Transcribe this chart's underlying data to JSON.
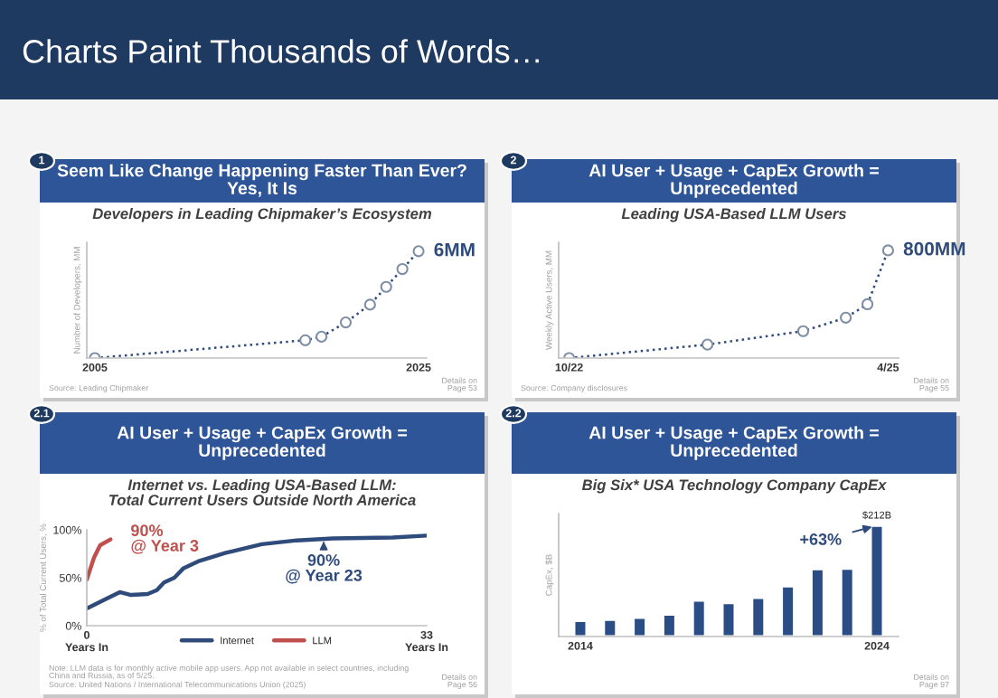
{
  "chart_data": [
    {
      "type": "other",
      "title": "Charts Paint Thousands of Words…"
    },
    {
      "type": "line",
      "title": "Seem Like Change Happening Faster Than Ever?\nYes, It Is",
      "subtitle": "Developers in Leading Chipmaker’s Ecosystem",
      "ylabel": "Number of Developers, MM",
      "x": [
        2005,
        2018,
        2019,
        2020.5,
        2022,
        2023,
        2024,
        2025
      ],
      "series": [
        {
          "color": "#2f4b7c",
          "values": [
            0,
            1.0,
            1.2,
            2.0,
            3.0,
            4.0,
            5.0,
            6
          ],
          "value_labels": [
            null,
            null,
            null,
            null,
            null,
            null,
            null,
            "6MM"
          ]
        }
      ],
      "xlim": [
        2004.5,
        2025.5
      ],
      "xticks": [
        2005,
        2025
      ],
      "ylim": [
        0,
        6.5
      ],
      "tick_labels": "x",
      "marker": "circle",
      "line_style": "dotted",
      "annotations": [
        "1",
        "Source: Leading Chipmaker",
        "Details on\nPage 53"
      ]
    },
    {
      "type": "line",
      "title": "AI User + Usage + CapEx Growth =\nUnprecedented",
      "subtitle": "Leading USA-Based LLM Users",
      "ylabel": "Weekly Active Users, MM",
      "x": [
        "2022-10",
        "2023-11",
        "2024-08",
        "2024-12",
        "2025-02",
        "2025-04"
      ],
      "series": [
        {
          "color": "#2f4b7c",
          "values": [
            0,
            100,
            200,
            300,
            400,
            800
          ],
          "value_labels": [
            null,
            null,
            null,
            null,
            null,
            "800MM"
          ]
        }
      ],
      "xlim": [
        "2022-09",
        "2025-05"
      ],
      "xticks": [
        {
          "value": "2022-10",
          "label": "10/22"
        },
        {
          "value": "2025-04",
          "label": "4/25"
        }
      ],
      "ylim": [
        0,
        860
      ],
      "tick_labels": "x",
      "marker": "circle",
      "line_style": "dotted",
      "annotations": [
        "2",
        "Source: Company disclosures",
        "Details on\nPage 55"
      ]
    },
    {
      "type": "line",
      "title": "AI User + Usage + CapEx Growth =\nUnprecedented",
      "subtitle": "Internet vs. Leading USA-Based LLM:\nTotal Current Users Outside North America",
      "ylabel": "% of Total Current Users, %",
      "series": [
        {
          "name": "Internet",
          "color": "#2f4b7c",
          "x": [
            0,
            1.5,
            3.2,
            4.3,
            5.9,
            6.8,
            7.5,
            8.5,
            9.4,
            10.8,
            13.5,
            17,
            20.4,
            23.9,
            29.7,
            33
          ],
          "values": [
            18,
            26,
            35,
            32,
            33,
            37,
            45,
            50,
            60,
            67,
            76,
            85,
            89,
            91,
            92,
            94
          ]
        },
        {
          "name": "LLM",
          "color": "#c0504d",
          "x": [
            0,
            0.7,
            1.3,
            2.3
          ],
          "values": [
            48,
            71,
            84,
            90
          ]
        }
      ],
      "xlim": [
        0,
        33
      ],
      "xticks": [
        {
          "value": 0,
          "label": "0\nYears In"
        },
        {
          "value": 33,
          "label": "33\nYears In"
        }
      ],
      "ylim": [
        0,
        100
      ],
      "yticks": [
        {
          "value": 0,
          "label": "0%"
        },
        {
          "value": 50,
          "label": "50%"
        },
        {
          "value": 100,
          "label": "100%"
        }
      ],
      "legend": "bottom",
      "annotations": [
        "2.1",
        {
          "text": "90%\n@ Year 3",
          "x": 2.3,
          "y": 90
        },
        {
          "text": "90%\n@ Year 23",
          "x": 23,
          "y": 88
        },
        "Note: LLM data is for monthly active mobile app users. App not available in select countries, including\nChina and Russia, as of 5/25.",
        "Source: United Nations / International Telecommunications Union (2025)",
        "Details on\nPage 56"
      ]
    },
    {
      "type": "bar",
      "title": "AI User + Usage + CapEx Growth =\nUnprecedented",
      "subtitle": "Big Six* USA Technology Company CapEx",
      "ylabel": "CapEx, $B",
      "categories": [
        "2014",
        null,
        null,
        null,
        null,
        null,
        null,
        null,
        null,
        null,
        "2024"
      ],
      "series": [
        {
          "color": "#2b4d86",
          "values": [
            30,
            32,
            36,
            42,
            69,
            64,
            74,
            96,
            129,
            130,
            212
          ],
          "value_labels": [
            null,
            null,
            null,
            null,
            null,
            null,
            null,
            null,
            null,
            null,
            "$212B"
          ]
        }
      ],
      "ylim": [
        0,
        235
      ],
      "tick_labels": "x",
      "annotations": [
        "2.2",
        {
          "text": "+63%",
          "x": "2024",
          "y": 212
        },
        "Details on\nPage 97"
      ]
    }
  ]
}
